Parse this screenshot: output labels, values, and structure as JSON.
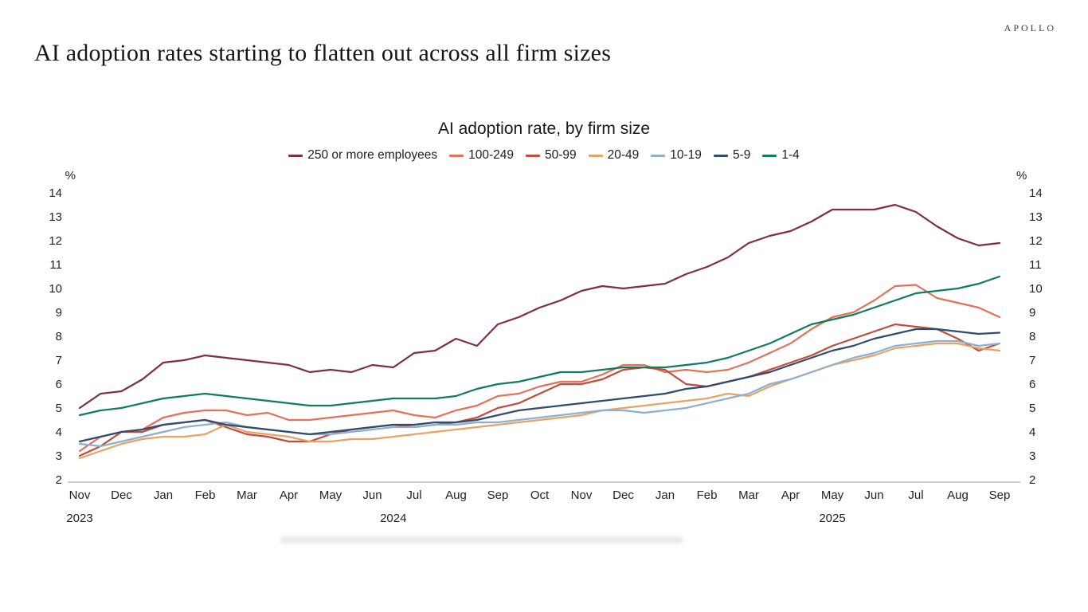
{
  "page": {
    "background": "#ffffff"
  },
  "brand": {
    "logo_text": "APOLLO"
  },
  "heading": {
    "title": "AI adoption rates starting to flatten out across all firm sizes"
  },
  "chart_data": {
    "type": "line",
    "title": "AI adoption rate, by firm size",
    "ylabel_left": "%",
    "ylabel_right": "%",
    "ylim": [
      2,
      14
    ],
    "y_ticks": [
      2,
      3,
      4,
      5,
      6,
      7,
      8,
      9,
      10,
      11,
      12,
      13,
      14
    ],
    "grid": false,
    "legend_position": "top",
    "x_unit": "semi-monthly survey observations, Nov 2023 - Sep 2025",
    "points_per_series": 45,
    "month_labels": [
      "Nov",
      "Dec",
      "Jan",
      "Feb",
      "Mar",
      "Apr",
      "May",
      "Jun",
      "Jul",
      "Aug",
      "Sep",
      "Oct",
      "Nov",
      "Dec",
      "Jan",
      "Feb",
      "Mar",
      "Apr",
      "May",
      "Jun",
      "Jul",
      "Aug",
      "Sep"
    ],
    "year_labels": [
      {
        "label": "2023",
        "month_index": 0
      },
      {
        "label": "2024",
        "month_index": 7.5
      },
      {
        "label": "2025",
        "month_index": 18
      }
    ],
    "series": [
      {
        "name": "250 or more employees",
        "color": "#7c3042",
        "values": [
          5.0,
          5.6,
          5.7,
          6.2,
          6.9,
          7.0,
          7.2,
          7.1,
          7.0,
          6.9,
          6.8,
          6.5,
          6.6,
          6.5,
          6.8,
          6.7,
          7.3,
          7.4,
          7.9,
          7.6,
          8.5,
          8.8,
          9.2,
          9.5,
          9.9,
          10.1,
          10.0,
          10.1,
          10.2,
          10.6,
          10.9,
          11.3,
          11.9,
          12.2,
          12.4,
          12.8,
          13.3,
          13.3,
          13.3,
          13.5,
          13.2,
          12.6,
          12.1,
          11.8,
          11.9
        ]
      },
      {
        "name": "100-249",
        "color": "#e5705a",
        "values": [
          3.2,
          3.8,
          4.0,
          4.1,
          4.6,
          4.8,
          4.9,
          4.9,
          4.7,
          4.8,
          4.5,
          4.5,
          4.6,
          4.7,
          4.8,
          4.9,
          4.7,
          4.6,
          4.9,
          5.1,
          5.5,
          5.6,
          5.9,
          6.1,
          6.1,
          6.4,
          6.8,
          6.8,
          6.5,
          6.6,
          6.5,
          6.6,
          6.9,
          7.3,
          7.7,
          8.3,
          8.8,
          9.0,
          9.5,
          10.1,
          10.15,
          9.6,
          9.4,
          9.2,
          8.8
        ]
      },
      {
        "name": "50-99",
        "color": "#c14b3c",
        "values": [
          3.0,
          3.4,
          4.0,
          4.0,
          4.3,
          4.4,
          4.5,
          4.2,
          3.9,
          3.8,
          3.6,
          3.6,
          3.9,
          4.1,
          4.2,
          4.3,
          4.2,
          4.3,
          4.4,
          4.6,
          5.0,
          5.2,
          5.6,
          6.0,
          6.0,
          6.2,
          6.6,
          6.7,
          6.6,
          6.0,
          5.9,
          6.1,
          6.3,
          6.6,
          6.9,
          7.2,
          7.6,
          7.9,
          8.2,
          8.5,
          8.4,
          8.3,
          7.9,
          7.4,
          7.7
        ]
      },
      {
        "name": "20-49",
        "color": "#e9a266",
        "values": [
          2.9,
          3.2,
          3.5,
          3.7,
          3.8,
          3.8,
          3.9,
          4.3,
          4.0,
          3.9,
          3.8,
          3.6,
          3.6,
          3.7,
          3.7,
          3.8,
          3.9,
          4.0,
          4.1,
          4.2,
          4.3,
          4.4,
          4.5,
          4.6,
          4.7,
          4.9,
          5.0,
          5.1,
          5.2,
          5.3,
          5.4,
          5.6,
          5.5,
          5.9,
          6.2,
          6.5,
          6.8,
          7.0,
          7.2,
          7.5,
          7.6,
          7.7,
          7.7,
          7.5,
          7.4
        ]
      },
      {
        "name": "10-19",
        "color": "#8fafce",
        "values": [
          3.5,
          3.4,
          3.6,
          3.8,
          4.0,
          4.2,
          4.3,
          4.4,
          4.2,
          4.1,
          4.0,
          3.9,
          3.9,
          4.0,
          4.1,
          4.2,
          4.2,
          4.3,
          4.3,
          4.4,
          4.4,
          4.5,
          4.6,
          4.7,
          4.8,
          4.9,
          4.9,
          4.8,
          4.9,
          5.0,
          5.2,
          5.4,
          5.6,
          6.0,
          6.2,
          6.5,
          6.8,
          7.1,
          7.3,
          7.6,
          7.7,
          7.8,
          7.8,
          7.6,
          7.7
        ]
      },
      {
        "name": "5-9",
        "color": "#2f4b6e",
        "values": [
          3.6,
          3.8,
          4.0,
          4.1,
          4.3,
          4.4,
          4.5,
          4.3,
          4.2,
          4.1,
          4.0,
          3.9,
          4.0,
          4.1,
          4.2,
          4.3,
          4.3,
          4.4,
          4.4,
          4.5,
          4.7,
          4.9,
          5.0,
          5.1,
          5.2,
          5.3,
          5.4,
          5.5,
          5.6,
          5.8,
          5.9,
          6.1,
          6.3,
          6.5,
          6.8,
          7.1,
          7.4,
          7.6,
          7.9,
          8.1,
          8.3,
          8.3,
          8.2,
          8.1,
          8.15
        ]
      },
      {
        "name": "1-4",
        "color": "#0f7b5f",
        "values": [
          4.7,
          4.9,
          5.0,
          5.2,
          5.4,
          5.5,
          5.6,
          5.5,
          5.4,
          5.3,
          5.2,
          5.1,
          5.1,
          5.2,
          5.3,
          5.4,
          5.4,
          5.4,
          5.5,
          5.8,
          6.0,
          6.1,
          6.3,
          6.5,
          6.5,
          6.6,
          6.7,
          6.7,
          6.7,
          6.8,
          6.9,
          7.1,
          7.4,
          7.7,
          8.1,
          8.5,
          8.7,
          8.9,
          9.2,
          9.5,
          9.8,
          9.9,
          10.0,
          10.2,
          10.5
        ]
      }
    ]
  }
}
